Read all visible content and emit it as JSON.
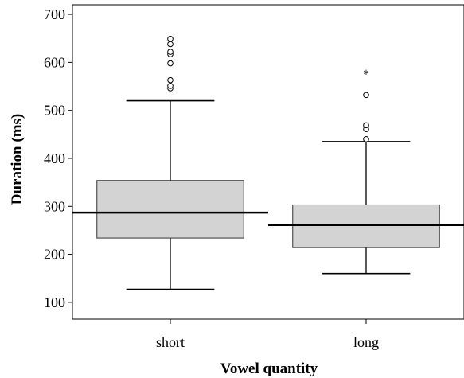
{
  "chart_data": {
    "type": "boxplot",
    "title": "",
    "xlabel": "Vowel quantity",
    "ylabel": "Duration (ms)",
    "ylim": [
      65,
      720
    ],
    "yticks": [
      100,
      200,
      300,
      400,
      500,
      600,
      700
    ],
    "categories": [
      "short",
      "long"
    ],
    "boxes": [
      {
        "category": "short",
        "whisker_low": 127,
        "q1": 234,
        "median": 287,
        "q3": 354,
        "whisker_high": 520,
        "outliers": [
          546,
          551,
          563,
          598,
          617,
          622,
          638,
          649
        ],
        "extremes": []
      },
      {
        "category": "long",
        "whisker_low": 160,
        "q1": 214,
        "median": 261,
        "q3": 303,
        "whisker_high": 435,
        "outliers": [
          440,
          461,
          469,
          532
        ],
        "extremes": [
          577
        ]
      }
    ],
    "grid": false,
    "legend": "none",
    "box_fill": "#d3d3d3",
    "line_color": "#000000"
  }
}
